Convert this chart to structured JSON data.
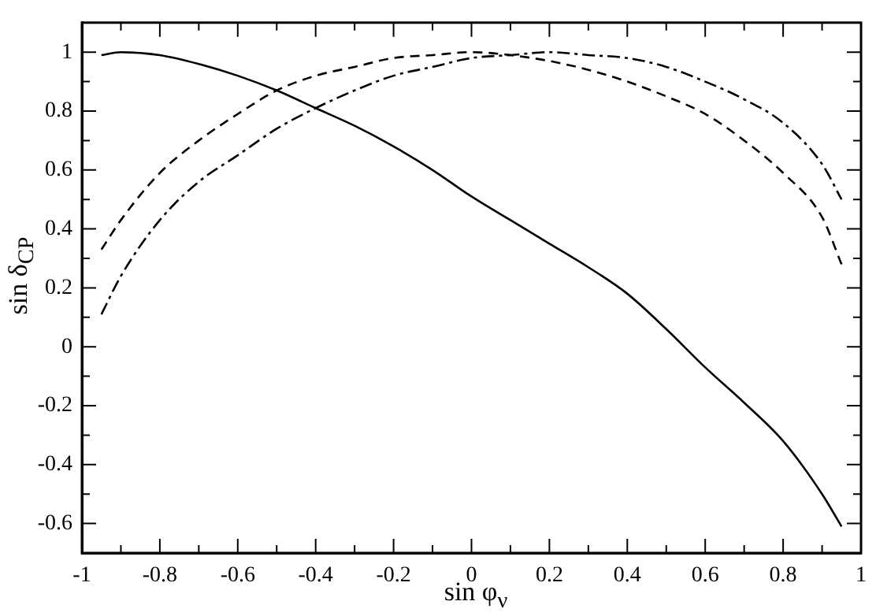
{
  "chart_data": {
    "type": "line",
    "xlabel": "sin φ$_{ν}$",
    "ylabel": "sin δ$_{CP}$",
    "xlim": [
      -1,
      1
    ],
    "ylim": [
      -0.7,
      1.1
    ],
    "xticks": [
      -1,
      {
        "value": -0.9,
        "label": null
      },
      -0.8,
      {
        "value": -0.7,
        "label": null
      },
      -0.6,
      {
        "value": -0.5,
        "label": null
      },
      -0.4,
      {
        "value": -0.3,
        "label": null
      },
      -0.2,
      {
        "value": -0.1,
        "label": null
      },
      0,
      {
        "value": 0.1,
        "label": null
      },
      0.2,
      {
        "value": 0.3,
        "label": null
      },
      0.4,
      {
        "value": 0.5,
        "label": null
      },
      0.6,
      {
        "value": 0.7,
        "label": null
      },
      0.8,
      {
        "value": 0.9,
        "label": null
      },
      1
    ],
    "yticks": [
      -0.6,
      {
        "value": -0.5,
        "label": null
      },
      -0.4,
      {
        "value": -0.3,
        "label": null
      },
      -0.2,
      {
        "value": -0.1,
        "label": null
      },
      0,
      {
        "value": 0.1,
        "label": null
      },
      0.2,
      {
        "value": 0.3,
        "label": null
      },
      0.4,
      {
        "value": 0.5,
        "label": null
      },
      0.6,
      {
        "value": 0.7,
        "label": null
      },
      0.8,
      {
        "value": 0.9,
        "label": null
      },
      1
    ],
    "grid": false,
    "legend": false,
    "marker": "none",
    "x": [
      -0.95,
      -0.9,
      -0.8,
      -0.7,
      -0.6,
      -0.5,
      -0.4,
      -0.3,
      -0.2,
      -0.1,
      0,
      0.1,
      0.2,
      0.3,
      0.4,
      0.5,
      0.6,
      0.7,
      0.8,
      0.9,
      0.95
    ],
    "series": [
      {
        "color": "#000000",
        "line_style": "solid",
        "values": [
          0.99,
          1.0,
          0.99,
          0.96,
          0.92,
          0.87,
          0.81,
          0.75,
          0.68,
          0.6,
          0.51,
          0.43,
          0.35,
          0.27,
          0.18,
          0.06,
          -0.07,
          -0.19,
          -0.32,
          -0.5,
          -0.61
        ]
      },
      {
        "color": "#000000",
        "line_style": "dashed",
        "values": [
          0.33,
          0.43,
          0.59,
          0.7,
          0.79,
          0.87,
          0.92,
          0.95,
          0.98,
          0.99,
          1.0,
          0.99,
          0.97,
          0.94,
          0.9,
          0.85,
          0.79,
          0.7,
          0.59,
          0.44,
          0.28
        ]
      },
      {
        "color": "#000000",
        "line_style": "dashdot",
        "values": [
          0.11,
          0.24,
          0.43,
          0.56,
          0.65,
          0.74,
          0.81,
          0.87,
          0.92,
          0.95,
          0.98,
          0.99,
          1.0,
          0.99,
          0.98,
          0.95,
          0.9,
          0.84,
          0.76,
          0.62,
          0.5
        ]
      }
    ]
  }
}
